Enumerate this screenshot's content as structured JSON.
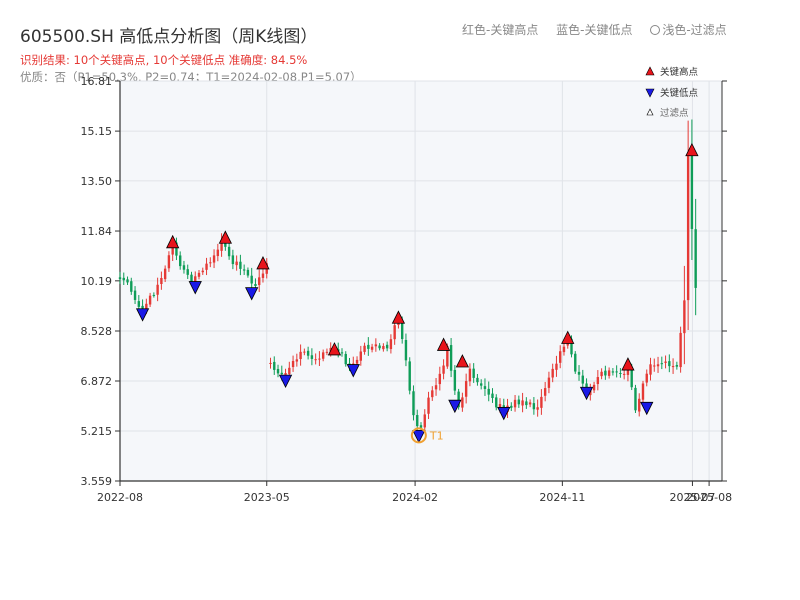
{
  "header": {
    "title": "605500.SH 高低点分析图（周K线图）",
    "legend_high": "红色-关键高点",
    "legend_low": "蓝色-关键低点",
    "legend_filtered": "浅色-过滤点",
    "result_line": "识别结果: 10个关键高点, 10个关键低点  准确度: 84.5%",
    "quality_line": "优质：否（P1=50.3%, P2=0.74；T1=2024-02-08,P1=5.07）"
  },
  "colors": {
    "up": "#e53935",
    "down": "#0f9d58",
    "high_marker": "#e8141b",
    "low_marker": "#1a1ae6",
    "t1": "#f0a030",
    "plot_bg": "#f5f7fa",
    "grid": "#e0e3e8"
  },
  "chart_data": {
    "type": "candlestick",
    "xlabel": "",
    "ylabel": "",
    "y_ticks": [
      "3.559",
      "5.215",
      "6.872",
      "8.528",
      "10.19",
      "11.84",
      "13.50",
      "15.15",
      "16.81"
    ],
    "y_range": [
      3.559,
      16.81
    ],
    "x_ticks": [
      {
        "label": "2022-08",
        "date": "2022-08"
      },
      {
        "label": "2023-05",
        "date": "2023-05"
      },
      {
        "label": "2024-02",
        "date": "2024-02"
      },
      {
        "label": "2024-11",
        "date": "2024-11"
      },
      {
        "label": "2025-07",
        "date": "2025-07"
      },
      {
        "label": "2025-08",
        "date": "2025-08"
      }
    ],
    "x_range": [
      "2022-08-01",
      "2025-08-25"
    ],
    "grid": true,
    "legend_placement": "top-right",
    "legend": [
      "关键高点",
      "关键低点",
      "过滤点"
    ],
    "segments": [
      {
        "start": "2022-08-01",
        "end": "2023-05-01",
        "points": [
          [
            "2022-08-01",
            10.3
          ],
          [
            "2022-08-22",
            9.9
          ],
          [
            "2022-09-12",
            9.2
          ],
          [
            "2022-10-03",
            9.8
          ],
          [
            "2022-10-17",
            10.2
          ],
          [
            "2022-11-07",
            11.5
          ],
          [
            "2022-11-21",
            10.7
          ],
          [
            "2022-12-12",
            10.2
          ],
          [
            "2023-01-02",
            10.6
          ],
          [
            "2023-01-23",
            11.0
          ],
          [
            "2023-02-06",
            11.6
          ],
          [
            "2023-02-27",
            10.8
          ],
          [
            "2023-03-20",
            10.6
          ],
          [
            "2023-04-10",
            10.0
          ],
          [
            "2023-04-24",
            10.5
          ],
          [
            "2023-05-01",
            10.7
          ]
        ]
      },
      {
        "start": "2023-05-08",
        "end": "2025-07-07",
        "points": [
          [
            "2023-05-08",
            7.4
          ],
          [
            "2023-05-29",
            7.0
          ],
          [
            "2023-06-19",
            7.6
          ],
          [
            "2023-07-10",
            7.8
          ],
          [
            "2023-08-07",
            7.6
          ],
          [
            "2023-08-28",
            7.9
          ],
          [
            "2023-09-18",
            7.7
          ],
          [
            "2023-10-02",
            7.3
          ],
          [
            "2023-10-30",
            8.0
          ],
          [
            "2023-11-20",
            8.1
          ],
          [
            "2023-12-11",
            8.0
          ],
          [
            "2024-01-01",
            8.9
          ],
          [
            "2024-01-15",
            7.5
          ],
          [
            "2024-01-29",
            5.8
          ],
          [
            "2024-02-08",
            5.07
          ],
          [
            "2024-02-26",
            6.2
          ],
          [
            "2024-03-18",
            7.0
          ],
          [
            "2024-04-01",
            8.0
          ],
          [
            "2024-04-22",
            6.0
          ],
          [
            "2024-05-13",
            7.2
          ],
          [
            "2024-06-03",
            6.8
          ],
          [
            "2024-06-24",
            6.2
          ],
          [
            "2024-07-15",
            5.9
          ],
          [
            "2024-08-05",
            6.2
          ],
          [
            "2024-08-26",
            6.1
          ],
          [
            "2024-09-16",
            6.0
          ],
          [
            "2024-09-30",
            6.6
          ],
          [
            "2024-10-21",
            7.5
          ],
          [
            "2024-11-11",
            8.2
          ],
          [
            "2024-11-25",
            7.3
          ],
          [
            "2024-12-16",
            6.5
          ],
          [
            "2025-01-06",
            7.0
          ],
          [
            "2025-01-27",
            7.2
          ],
          [
            "2025-02-17",
            7.1
          ],
          [
            "2025-03-03",
            7.3
          ],
          [
            "2025-03-17",
            6.0
          ],
          [
            "2025-04-07",
            7.2
          ],
          [
            "2025-04-28",
            7.5
          ],
          [
            "2025-05-19",
            7.4
          ],
          [
            "2025-06-02",
            7.4
          ],
          [
            "2025-06-16",
            9.5
          ],
          [
            "2025-06-23",
            14.3
          ],
          [
            "2025-06-30",
            12.0
          ],
          [
            "2025-07-07",
            10.0
          ]
        ]
      }
    ],
    "key_highs": [
      {
        "date": "2022-11-07",
        "value": 11.45
      },
      {
        "date": "2023-02-13",
        "value": 11.6
      },
      {
        "date": "2023-04-24",
        "value": 10.75
      },
      {
        "date": "2023-09-04",
        "value": 7.9
      },
      {
        "date": "2024-01-01",
        "value": 8.95
      },
      {
        "date": "2024-03-25",
        "value": 8.05
      },
      {
        "date": "2024-04-29",
        "value": 7.5
      },
      {
        "date": "2024-11-11",
        "value": 8.28
      },
      {
        "date": "2025-03-03",
        "value": 7.4
      },
      {
        "date": "2025-06-30",
        "value": 14.5
      }
    ],
    "key_lows": [
      {
        "date": "2022-09-12",
        "value": 9.1
      },
      {
        "date": "2022-12-19",
        "value": 10.0
      },
      {
        "date": "2023-04-03",
        "value": 9.8
      },
      {
        "date": "2023-06-05",
        "value": 6.9
      },
      {
        "date": "2023-10-09",
        "value": 7.25
      },
      {
        "date": "2024-02-08",
        "value": 5.07
      },
      {
        "date": "2024-04-15",
        "value": 6.07
      },
      {
        "date": "2024-07-15",
        "value": 5.83
      },
      {
        "date": "2024-12-16",
        "value": 6.5
      },
      {
        "date": "2025-04-07",
        "value": 6.0
      }
    ],
    "annotation": {
      "label": "T1",
      "date": "2024-02-08",
      "value": 5.07
    }
  }
}
